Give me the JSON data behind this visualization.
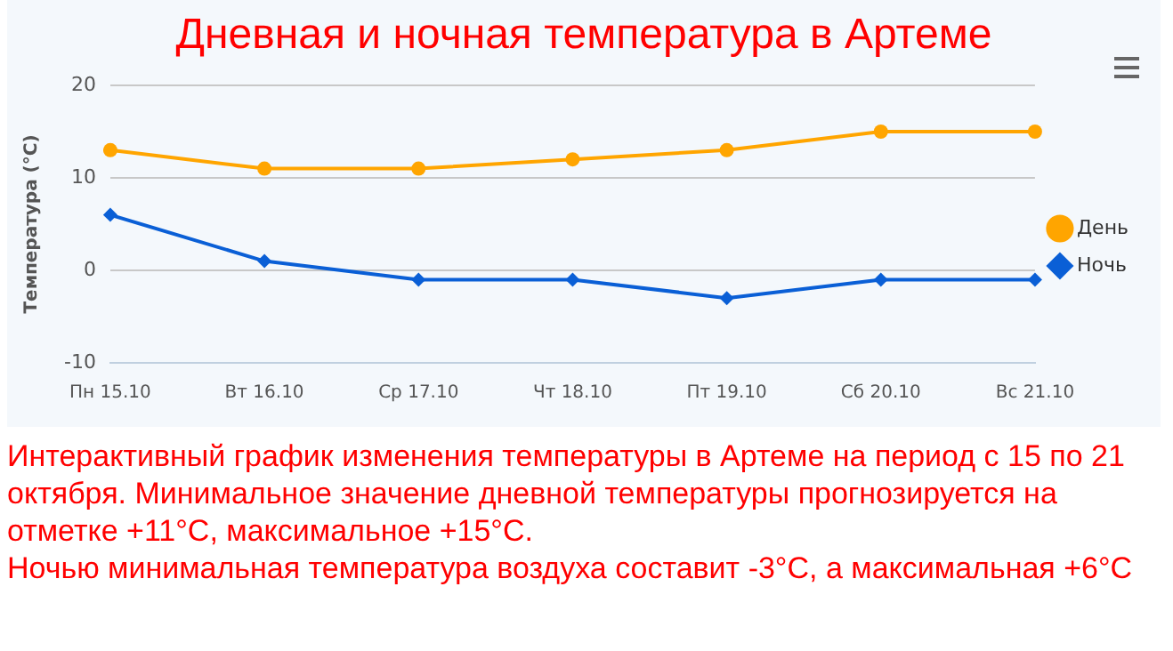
{
  "chart_data": {
    "type": "line",
    "title": "Дневная и ночная температура в Артеме",
    "ylabel": "Температура (°C)",
    "categories": [
      "Пн 15.10",
      "Вт 16.10",
      "Ср 17.10",
      "Чт 18.10",
      "Пт 19.10",
      "Сб 20.10",
      "Вс 21.10"
    ],
    "series": [
      {
        "name": "День",
        "color": "#ffa500",
        "marker": "circle",
        "values": [
          13,
          11,
          11,
          12,
          13,
          15,
          15
        ]
      },
      {
        "name": "Ночь",
        "color": "#0a5fd6",
        "marker": "diamond",
        "values": [
          6,
          1,
          -1,
          -1,
          -3,
          -1,
          -1
        ]
      }
    ],
    "ylim": [
      -10,
      20
    ],
    "yticks": [
      -10,
      0,
      10,
      20
    ],
    "grid": "y",
    "legend": "right",
    "line_style": "solid",
    "annotations": [
      "Интерактивный график изменения температуры в Артеме на период с 15 по 21 октября. Минимальное значение дневной температуры прогнозируется на отметке +11°C, максимальное +15°C.",
      "Ночью минимальная температура воздуха составит -3°C, а максимальная +6°C"
    ]
  }
}
